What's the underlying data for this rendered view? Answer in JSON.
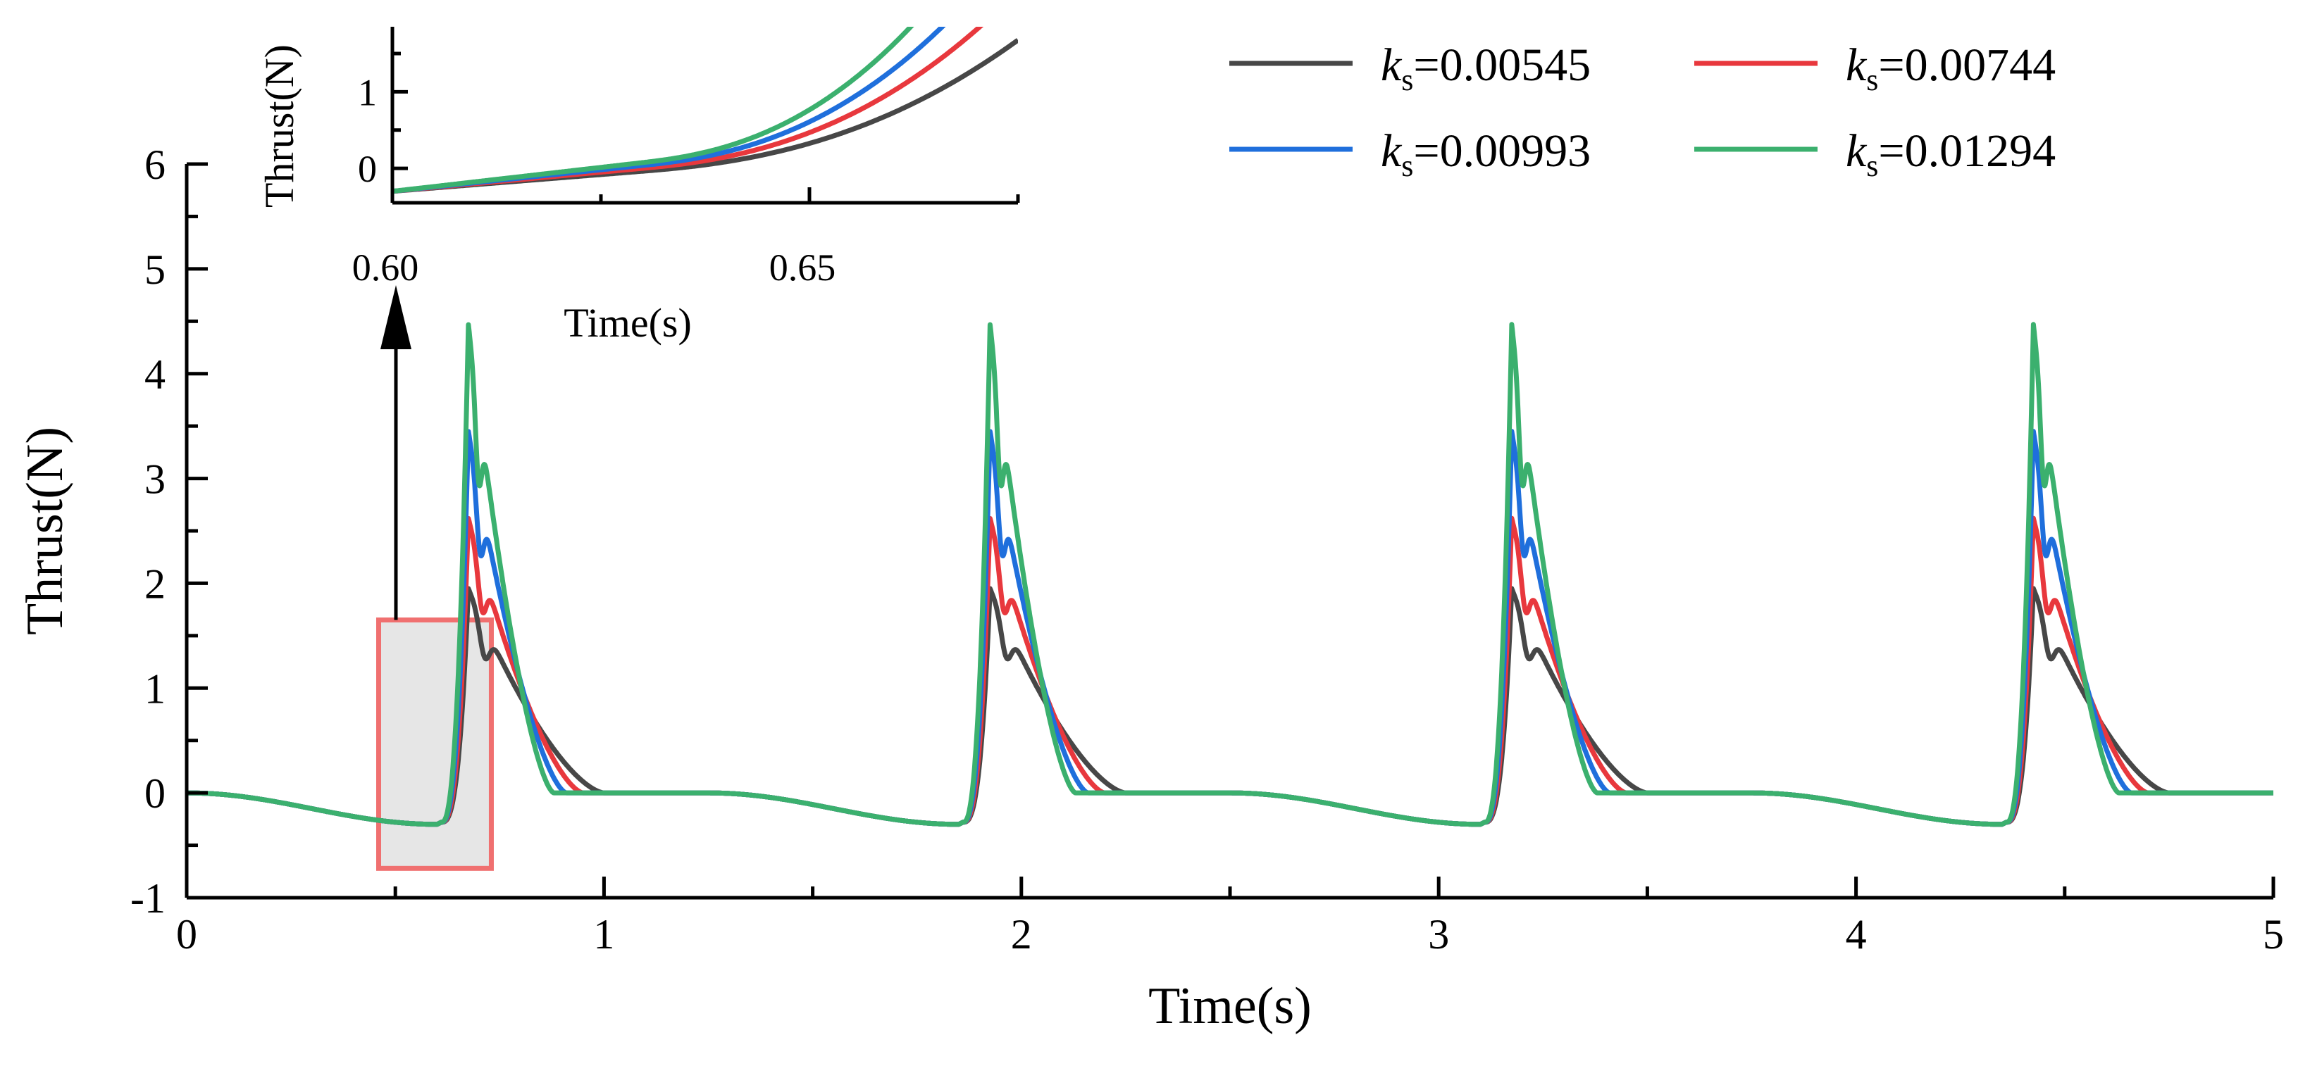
{
  "chart_data": [
    {
      "id": "main",
      "type": "line",
      "xlabel": "Time(s)",
      "ylabel": "Thrust(N)",
      "xlim": [
        0,
        5
      ],
      "ylim": [
        -1,
        6
      ],
      "xticks": [
        0,
        1,
        2,
        3,
        4,
        5
      ],
      "xtick_labels": [
        "0",
        "1",
        "2",
        "3",
        "4",
        "5"
      ],
      "yticks": [
        -1,
        0,
        1,
        2,
        3,
        4,
        5,
        6
      ],
      "ytick_labels": [
        "-1",
        "0",
        "1",
        "2",
        "3",
        "4",
        "5",
        "6"
      ],
      "grid": false,
      "legend_position": "top-right",
      "period": 1.25,
      "pulse_starts": [
        0.6,
        1.85,
        3.1,
        4.35
      ],
      "series": [
        {
          "name_italic": "k",
          "name_sub": "s",
          "name_value": "=0.00545",
          "color": "#474747",
          "peak": 1.95,
          "decay_end": 1.0,
          "shoulder": 1.55
        },
        {
          "name_italic": "k",
          "name_sub": "s",
          "name_value": "=0.00744",
          "color": "#e8383d",
          "peak": 2.62,
          "decay_end": 0.95,
          "shoulder": 1.95
        },
        {
          "name_italic": "k",
          "name_sub": "s",
          "name_value": "=0.00993",
          "color": "#1f6fdc",
          "peak": 3.45,
          "decay_end": 0.91,
          "shoulder": 2.5
        },
        {
          "name_italic": "k",
          "name_sub": "s",
          "name_value": "=0.01294",
          "color": "#3bb06e",
          "peak": 4.47,
          "decay_end": 0.88,
          "shoulder": 3.2
        }
      ],
      "annotation": {
        "type": "zoom-box",
        "x_range": [
          0.46,
          0.73
        ],
        "y_range": [
          -0.72,
          1.65
        ],
        "color": "#f07070",
        "fill": "#e6e6e6"
      }
    },
    {
      "id": "inset",
      "type": "line",
      "xlabel": "Time(s)",
      "ylabel": "Thrust(N)",
      "xlim": [
        0.6,
        0.675
      ],
      "ylim": [
        -0.45,
        1.85
      ],
      "xticks": [
        0.6,
        0.65
      ],
      "xtick_labels": [
        "0.60",
        "0.65"
      ],
      "yticks": [
        0,
        1
      ],
      "ytick_labels": [
        "0",
        "1"
      ],
      "grid": false
    }
  ]
}
